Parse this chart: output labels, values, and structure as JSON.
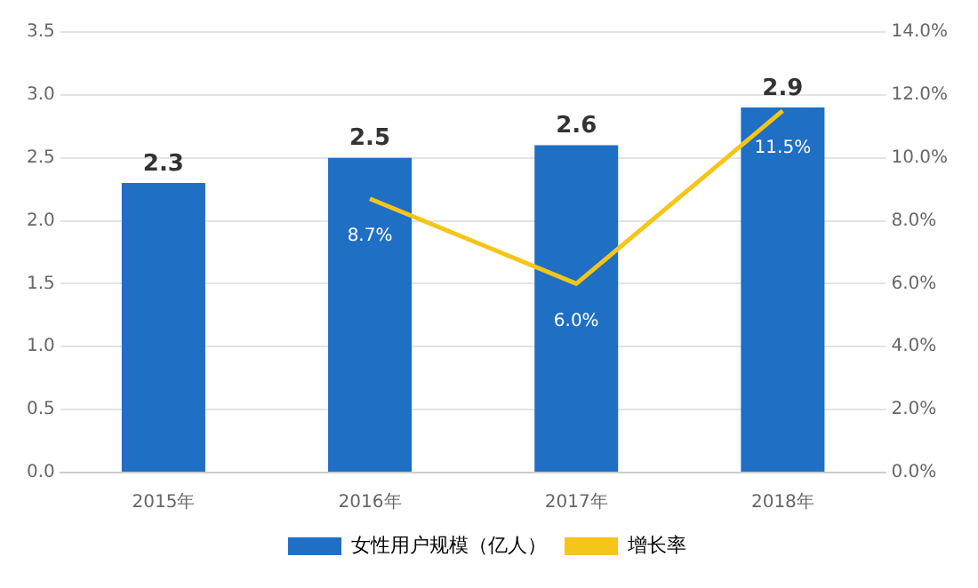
{
  "chart_data": {
    "type": "bar",
    "categories": [
      "2015年",
      "2016年",
      "2017年",
      "2018年"
    ],
    "series": [
      {
        "name": "女性用户规模（亿人）",
        "color": "#1f6fc5",
        "values": [
          2.3,
          2.5,
          2.6,
          2.9
        ],
        "value_labels": [
          "2.3",
          "2.5",
          "2.6",
          "2.9"
        ]
      },
      {
        "name": "增长率",
        "type": "line",
        "axis": "y2",
        "color": "#f5c518",
        "values": [
          null,
          8.7,
          6.0,
          11.5
        ],
        "value_labels": [
          null,
          "8.7%",
          "6.0%",
          "11.5%"
        ]
      }
    ],
    "ylim": [
      0,
      3.5
    ],
    "yticks": [
      {
        "value": 0,
        "label": "0.0"
      },
      {
        "value": 0.5,
        "label": "0.5"
      },
      {
        "value": 1,
        "label": "1.0"
      },
      {
        "value": 1.5,
        "label": "1.5"
      },
      {
        "value": 2,
        "label": "2.0"
      },
      {
        "value": 2.5,
        "label": "2.5"
      },
      {
        "value": 3,
        "label": "3.0"
      },
      {
        "value": 3.5,
        "label": "3.5"
      }
    ],
    "y2lim": [
      0,
      14
    ],
    "y2ticks": [
      {
        "value": 0,
        "label": "0.0%"
      },
      {
        "value": 2,
        "label": "2.0%"
      },
      {
        "value": 4,
        "label": "4.0%"
      },
      {
        "value": 6,
        "label": "6.0%"
      },
      {
        "value": 8,
        "label": "8.0%"
      },
      {
        "value": 10,
        "label": "10.0%"
      },
      {
        "value": 12,
        "label": "12.0%"
      },
      {
        "value": 14,
        "label": "14.0%"
      }
    ],
    "grid": "y",
    "legend": "bottom",
    "marker": "none",
    "line_style": "solid"
  }
}
